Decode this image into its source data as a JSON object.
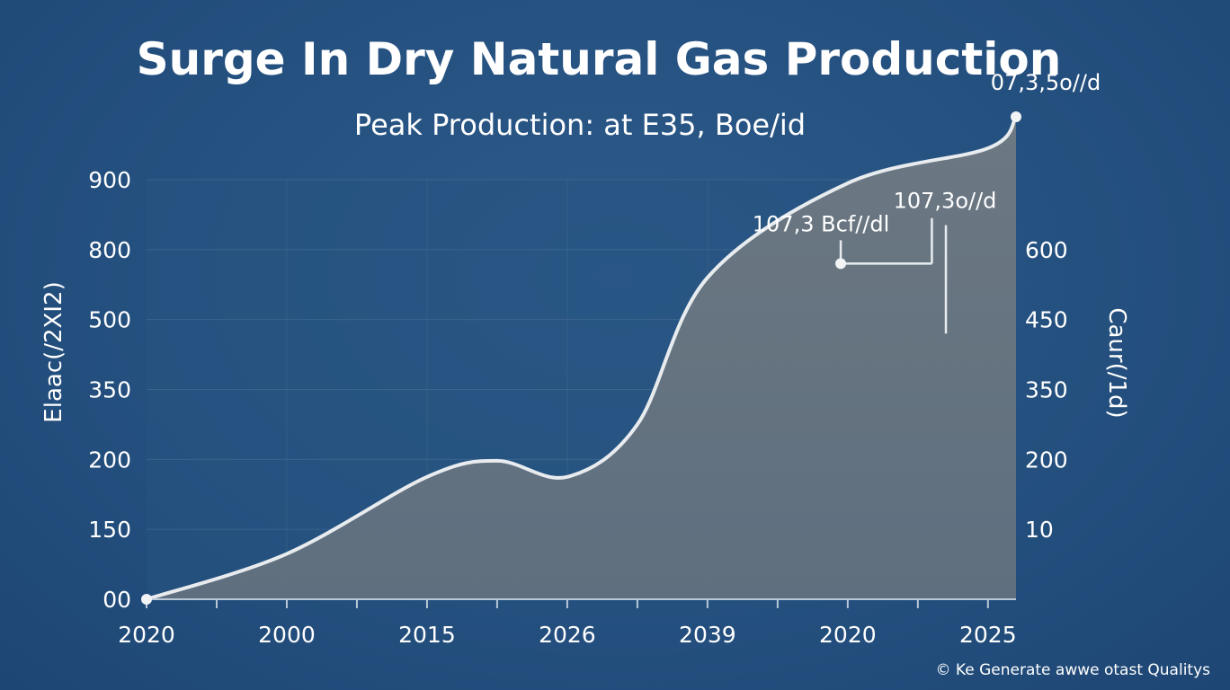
{
  "chart_data": {
    "type": "area",
    "title": "Surge In Dry Natural Gas Production",
    "subtitle": "Peak Production: at E35, Boe/id",
    "ylabel_left": "Elaac(/2XI2)",
    "ylabel_right": "Caur(/1d)",
    "x_tick_labels": [
      "2020",
      "2000",
      "2015",
      "2026",
      "2039",
      "2020",
      "2025"
    ],
    "y_left_ticks": [
      "00",
      "150",
      "200",
      "350",
      "500",
      "800",
      "900"
    ],
    "y_right_ticks": [
      "10",
      "200",
      "350",
      "450",
      "600"
    ],
    "ylim": [
      0,
      6
    ],
    "grid": true,
    "x_positions": [
      0,
      1,
      2,
      2.5,
      3,
      3.5,
      4,
      5,
      6,
      6.2
    ],
    "values": [
      0,
      0.65,
      1.75,
      1.98,
      1.75,
      2.5,
      4.6,
      5.95,
      6.45,
      6.9
    ],
    "annotations": [
      {
        "label": "107,3 Bcf//dl",
        "x": 4.95,
        "y": 4.8
      },
      {
        "label": "107,3o//d",
        "x": 5.7,
        "y": 5.7
      },
      {
        "label": "07,3,5o//d",
        "x": 6.2,
        "y": 6.9
      }
    ]
  },
  "watermark": "© Ke Generate awwe otast Qualitys"
}
